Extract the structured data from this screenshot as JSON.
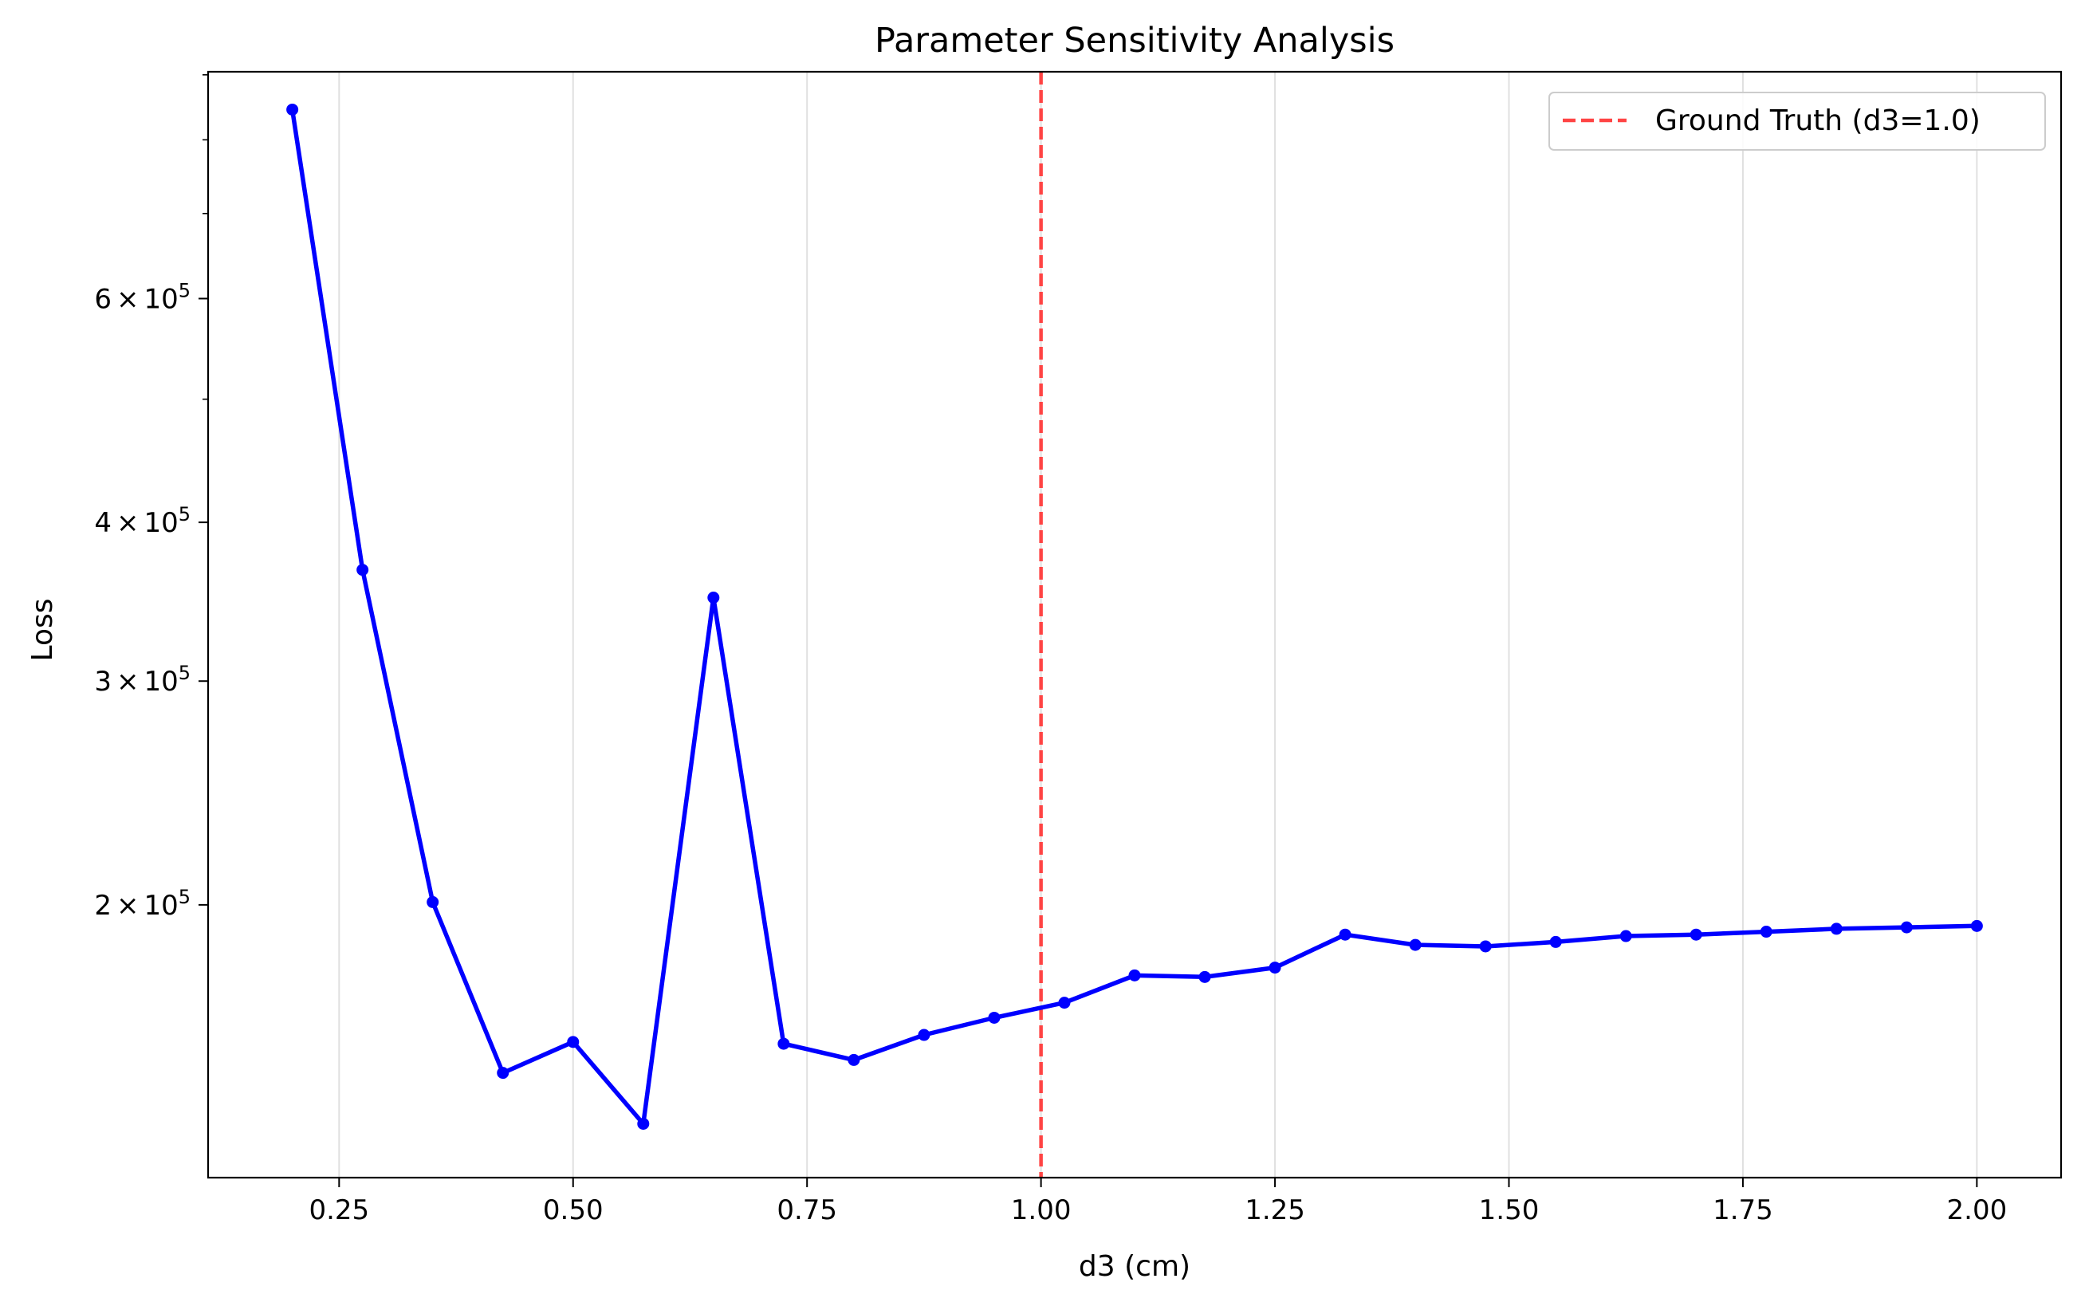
{
  "chart_data": {
    "type": "line",
    "title": "Parameter Sensitivity Analysis",
    "xlabel": "d3 (cm)",
    "ylabel": "Loss",
    "xlim": [
      0.11,
      2.09
    ],
    "ylim": [
      122000,
      905000
    ],
    "y_scale": "log",
    "grid": "x-only",
    "legend_position": "top-right",
    "x_ticks": [
      {
        "value": 0.25,
        "label": "0.25"
      },
      {
        "value": 0.5,
        "label": "0.50"
      },
      {
        "value": 0.75,
        "label": "0.75"
      },
      {
        "value": 1.0,
        "label": "1.00"
      },
      {
        "value": 1.25,
        "label": "1.25"
      },
      {
        "value": 1.5,
        "label": "1.50"
      },
      {
        "value": 1.75,
        "label": "1.75"
      },
      {
        "value": 2.0,
        "label": "2.00"
      }
    ],
    "y_major_ticks": [
      {
        "value": 200000,
        "mantissa": "2",
        "base": "10",
        "exp": "5"
      },
      {
        "value": 300000,
        "mantissa": "3",
        "base": "10",
        "exp": "5"
      },
      {
        "value": 400000,
        "mantissa": "4",
        "base": "10",
        "exp": "5"
      },
      {
        "value": 600000,
        "mantissa": "6",
        "base": "10",
        "exp": "5"
      }
    ],
    "y_minor_ticks": [
      500000,
      700000,
      800000,
      900000
    ],
    "series": [
      {
        "color": "#0000ff",
        "x": [
          0.2,
          0.275,
          0.35,
          0.425,
          0.5,
          0.575,
          0.65,
          0.725,
          0.8,
          0.875,
          0.95,
          1.025,
          1.1,
          1.175,
          1.25,
          1.325,
          1.4,
          1.475,
          1.55,
          1.625,
          1.7,
          1.775,
          1.85,
          1.925,
          2.0
        ],
        "y": [
          845000,
          367000,
          201000,
          147500,
          156000,
          134500,
          349000,
          155500,
          151000,
          158000,
          163000,
          167500,
          176000,
          175500,
          178500,
          189500,
          186000,
          185500,
          187000,
          189000,
          189500,
          190500,
          191500,
          192000,
          192500
        ]
      }
    ],
    "reference_line": {
      "x": 1.0,
      "color": "#ff4444",
      "style": "dashed",
      "label": "Ground Truth (d3=1.0)"
    }
  }
}
